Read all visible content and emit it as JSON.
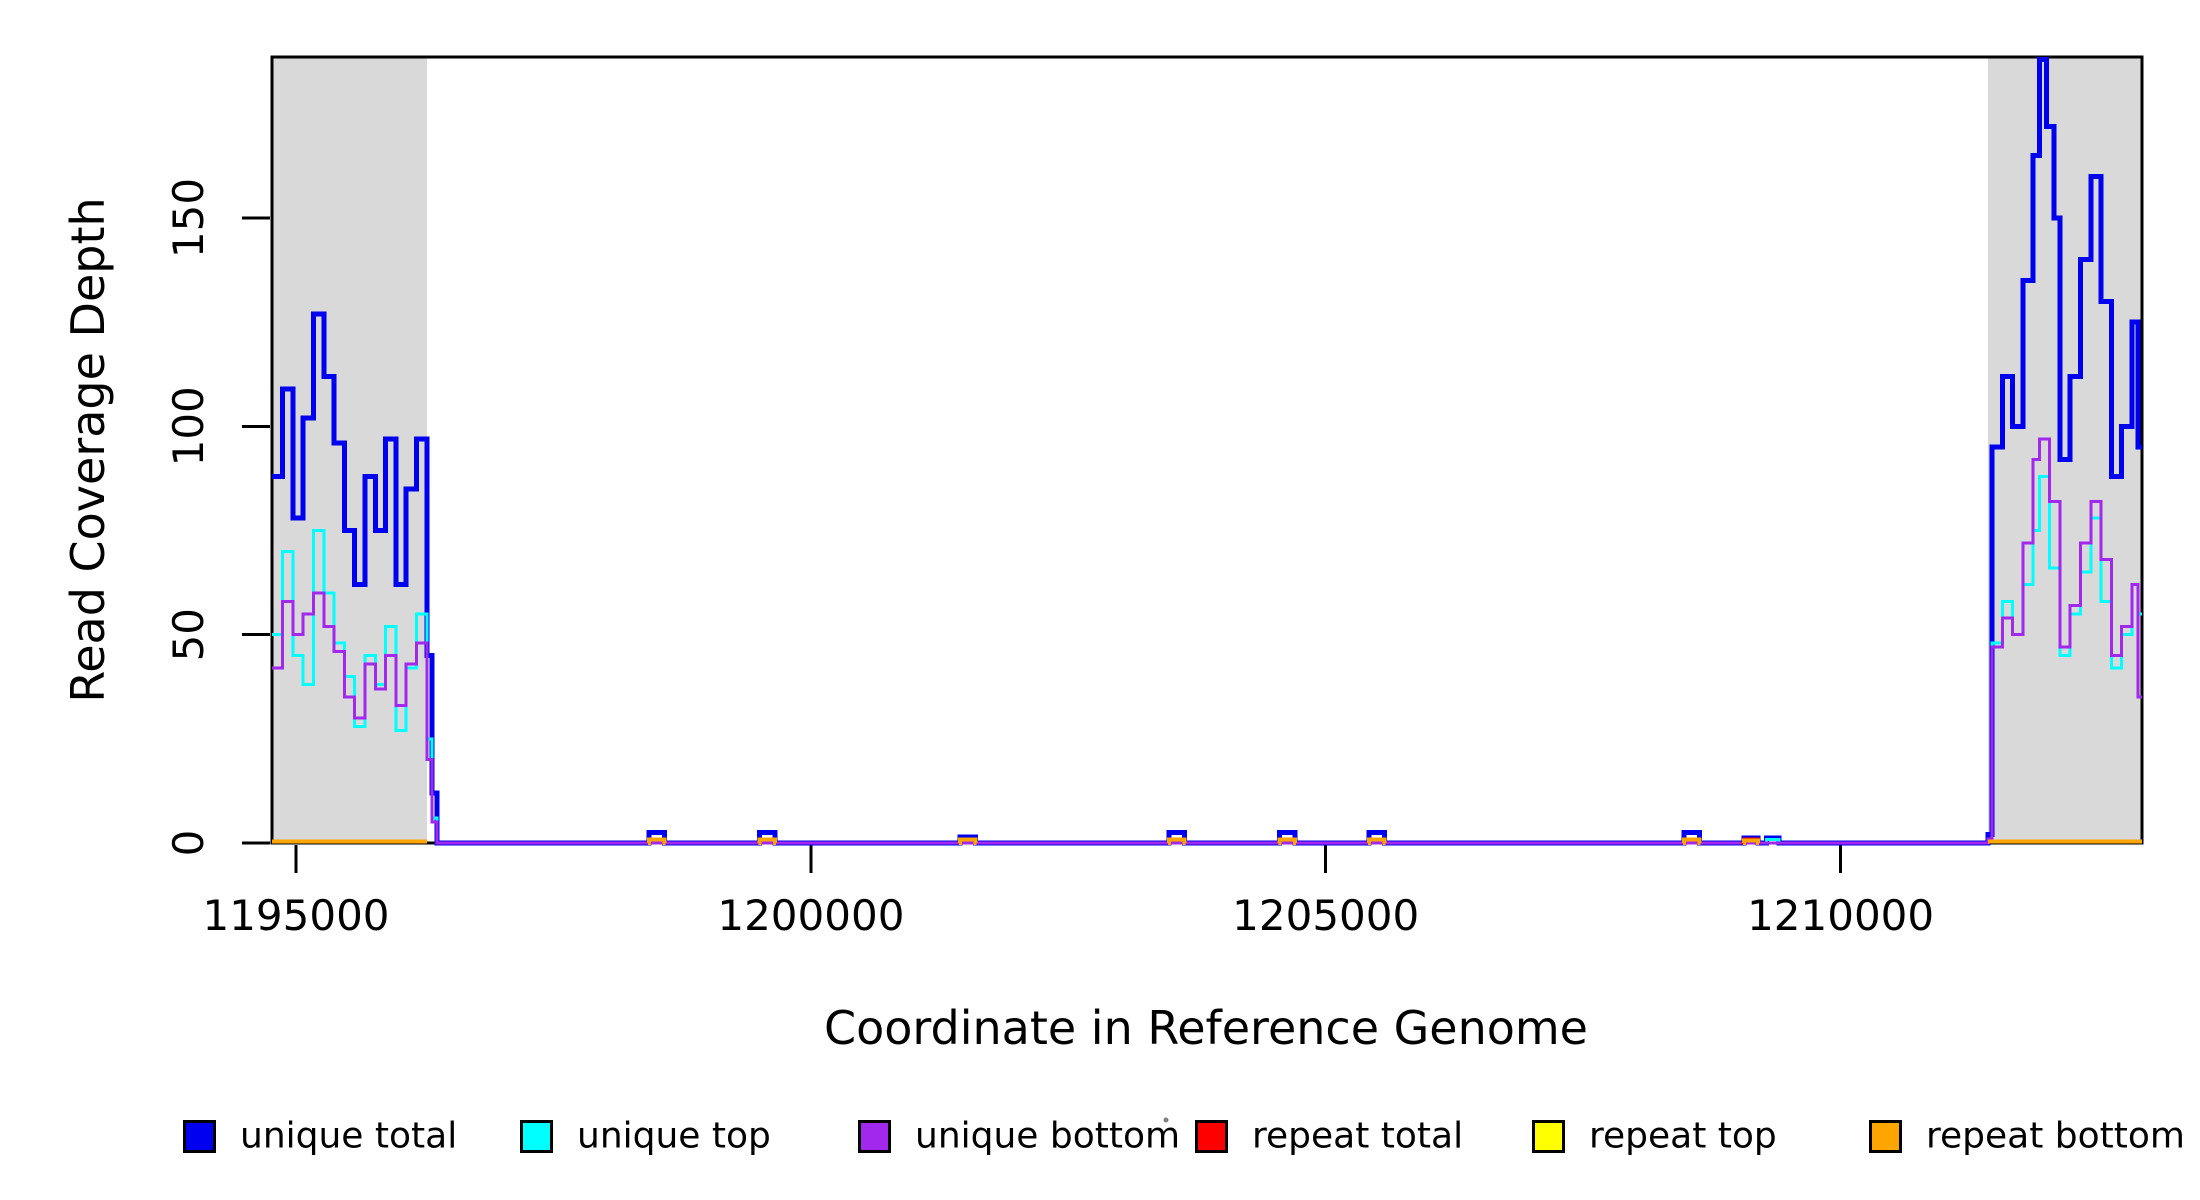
{
  "chart_data": {
    "type": "line",
    "subtype": "step-coverage-plot",
    "title": "",
    "xlabel": "Coordinate in Reference Genome",
    "ylabel": "Read Coverage Depth",
    "xlim": [
      1194767,
      1212927
    ],
    "ylim": [
      0,
      189
    ],
    "xticks": [
      1195000,
      1200000,
      1205000,
      1210000
    ],
    "yticks": [
      0,
      50,
      100,
      150
    ],
    "grid": false,
    "background": "#FFFFFF",
    "shaded_region_color": "#D9D9D9",
    "shaded_regions": [
      {
        "start": 1194767,
        "end": 1196272
      },
      {
        "start": 1211432,
        "end": 1212927
      }
    ],
    "legend_position": "bottom",
    "series": [
      {
        "name": "unique total",
        "color": "#0000F0",
        "lwd": 5,
        "segments": [
          [
            [
              1194767,
              88
            ],
            [
              1194870,
              109
            ],
            [
              1194970,
              78
            ],
            [
              1195070,
              102
            ],
            [
              1195170,
              127
            ],
            [
              1195270,
              112
            ],
            [
              1195370,
              96
            ],
            [
              1195470,
              75
            ],
            [
              1195570,
              62
            ],
            [
              1195670,
              88
            ],
            [
              1195770,
              75
            ],
            [
              1195870,
              97
            ],
            [
              1195970,
              62
            ],
            [
              1196070,
              85
            ],
            [
              1196170,
              97
            ],
            [
              1196270,
              45
            ],
            [
              1196320,
              12
            ],
            [
              1196370,
              0
            ],
            [
              1198430,
              2.5
            ],
            [
              1198580,
              0
            ],
            [
              1199500,
              2.5
            ],
            [
              1199650,
              0
            ],
            [
              1201450,
              1.5
            ],
            [
              1201600,
              0
            ],
            [
              1203480,
              2.5
            ],
            [
              1203630,
              0
            ],
            [
              1204550,
              2.5
            ],
            [
              1204700,
              0
            ],
            [
              1205420,
              2.5
            ],
            [
              1205570,
              0
            ],
            [
              1208480,
              2.5
            ],
            [
              1208630,
              0
            ],
            [
              1209060,
              1.2
            ],
            [
              1209200,
              0
            ],
            [
              1209280,
              1.2
            ],
            [
              1209400,
              0
            ],
            [
              1211432,
              2
            ],
            [
              1211470,
              95
            ],
            [
              1211570,
              112
            ],
            [
              1211670,
              100
            ],
            [
              1211770,
              135
            ],
            [
              1211870,
              165
            ],
            [
              1211930,
              188
            ],
            [
              1212000,
              172
            ],
            [
              1212070,
              150
            ],
            [
              1212130,
              92
            ],
            [
              1212230,
              112
            ],
            [
              1212330,
              140
            ],
            [
              1212430,
              160
            ],
            [
              1212530,
              130
            ],
            [
              1212630,
              88
            ],
            [
              1212730,
              100
            ],
            [
              1212830,
              125
            ],
            [
              1212890,
              95
            ],
            [
              1212927,
              95
            ]
          ]
        ]
      },
      {
        "name": "unique top",
        "color": "#00FFFF",
        "lwd": 3,
        "segments": [
          [
            [
              1194767,
              50
            ],
            [
              1194870,
              70
            ],
            [
              1194970,
              45
            ],
            [
              1195070,
              38
            ],
            [
              1195170,
              75
            ],
            [
              1195270,
              60
            ],
            [
              1195370,
              48
            ],
            [
              1195470,
              40
            ],
            [
              1195570,
              28
            ],
            [
              1195670,
              45
            ],
            [
              1195770,
              38
            ],
            [
              1195870,
              52
            ],
            [
              1195970,
              27
            ],
            [
              1196070,
              42
            ],
            [
              1196170,
              55
            ],
            [
              1196270,
              25
            ],
            [
              1196320,
              6
            ],
            [
              1196370,
              0
            ],
            [
              1203480,
              1
            ],
            [
              1203630,
              0
            ],
            [
              1204550,
              1
            ],
            [
              1204700,
              0
            ],
            [
              1209060,
              0.9
            ],
            [
              1209200,
              0
            ],
            [
              1209280,
              0.9
            ],
            [
              1209400,
              0
            ],
            [
              1211432,
              1
            ],
            [
              1211470,
              48
            ],
            [
              1211570,
              58
            ],
            [
              1211670,
              50
            ],
            [
              1211770,
              62
            ],
            [
              1211870,
              75
            ],
            [
              1211930,
              88
            ],
            [
              1212030,
              66
            ],
            [
              1212130,
              45
            ],
            [
              1212230,
              55
            ],
            [
              1212330,
              65
            ],
            [
              1212430,
              78
            ],
            [
              1212530,
              58
            ],
            [
              1212630,
              42
            ],
            [
              1212730,
              50
            ],
            [
              1212830,
              62
            ],
            [
              1212890,
              55
            ],
            [
              1212927,
              55
            ]
          ]
        ]
      },
      {
        "name": "unique bottom",
        "color": "#A228EE",
        "lwd": 3,
        "segments": [
          [
            [
              1194767,
              42
            ],
            [
              1194870,
              58
            ],
            [
              1194970,
              50
            ],
            [
              1195070,
              55
            ],
            [
              1195170,
              60
            ],
            [
              1195270,
              52
            ],
            [
              1195370,
              46
            ],
            [
              1195470,
              35
            ],
            [
              1195570,
              30
            ],
            [
              1195670,
              43
            ],
            [
              1195770,
              37
            ],
            [
              1195870,
              45
            ],
            [
              1195970,
              33
            ],
            [
              1196070,
              43
            ],
            [
              1196170,
              48
            ],
            [
              1196270,
              20
            ],
            [
              1196320,
              5
            ],
            [
              1196370,
              0
            ],
            [
              1211432,
              1
            ],
            [
              1211470,
              47
            ],
            [
              1211570,
              54
            ],
            [
              1211670,
              50
            ],
            [
              1211770,
              72
            ],
            [
              1211870,
              92
            ],
            [
              1211930,
              97
            ],
            [
              1212030,
              82
            ],
            [
              1212130,
              47
            ],
            [
              1212230,
              57
            ],
            [
              1212330,
              72
            ],
            [
              1212430,
              82
            ],
            [
              1212530,
              68
            ],
            [
              1212630,
              45
            ],
            [
              1212730,
              52
            ],
            [
              1212830,
              62
            ],
            [
              1212890,
              35
            ],
            [
              1212927,
              35
            ]
          ]
        ]
      },
      {
        "name": "repeat total",
        "color": "#FF0000",
        "lwd": 3,
        "segments": [
          [
            [
              1209040,
              0
            ],
            [
              1209060,
              1
            ],
            [
              1209200,
              0
            ],
            [
              1209210,
              0
            ]
          ]
        ]
      },
      {
        "name": "repeat top",
        "color": "#FFFF00",
        "lwd": 3,
        "segments": []
      },
      {
        "name": "repeat bottom",
        "color": "#FFA500",
        "lwd": 4,
        "segments": [
          [
            [
              1194767,
              0.4
            ],
            [
              1196272,
              0.4
            ]
          ],
          [
            [
              1198420,
              0
            ],
            [
              1198430,
              0.8
            ],
            [
              1198580,
              0
            ],
            [
              1198590,
              0
            ]
          ],
          [
            [
              1199490,
              0
            ],
            [
              1199500,
              0.8
            ],
            [
              1199650,
              0
            ],
            [
              1199660,
              0
            ]
          ],
          [
            [
              1201440,
              0
            ],
            [
              1201450,
              0.8
            ],
            [
              1201600,
              0
            ],
            [
              1201610,
              0
            ]
          ],
          [
            [
              1203470,
              0
            ],
            [
              1203480,
              0.8
            ],
            [
              1203630,
              0
            ],
            [
              1203640,
              0
            ]
          ],
          [
            [
              1204540,
              0
            ],
            [
              1204550,
              0.8
            ],
            [
              1204700,
              0
            ],
            [
              1204710,
              0
            ]
          ],
          [
            [
              1205410,
              0
            ],
            [
              1205420,
              0.8
            ],
            [
              1205570,
              0
            ],
            [
              1205580,
              0
            ]
          ],
          [
            [
              1208470,
              0
            ],
            [
              1208480,
              0.8
            ],
            [
              1208630,
              0
            ],
            [
              1208640,
              0
            ]
          ],
          [
            [
              1209050,
              0
            ],
            [
              1209060,
              0.6
            ],
            [
              1209200,
              0
            ],
            [
              1209210,
              0
            ]
          ],
          [
            [
              1211432,
              0.4
            ],
            [
              1212927,
              0.4
            ]
          ]
        ]
      }
    ],
    "artifact_dot": {
      "x": 1166,
      "y": 1120
    }
  },
  "labels": {
    "x_axis_title": "Coordinate in Reference Genome",
    "y_axis_title": "Read Coverage Depth"
  }
}
